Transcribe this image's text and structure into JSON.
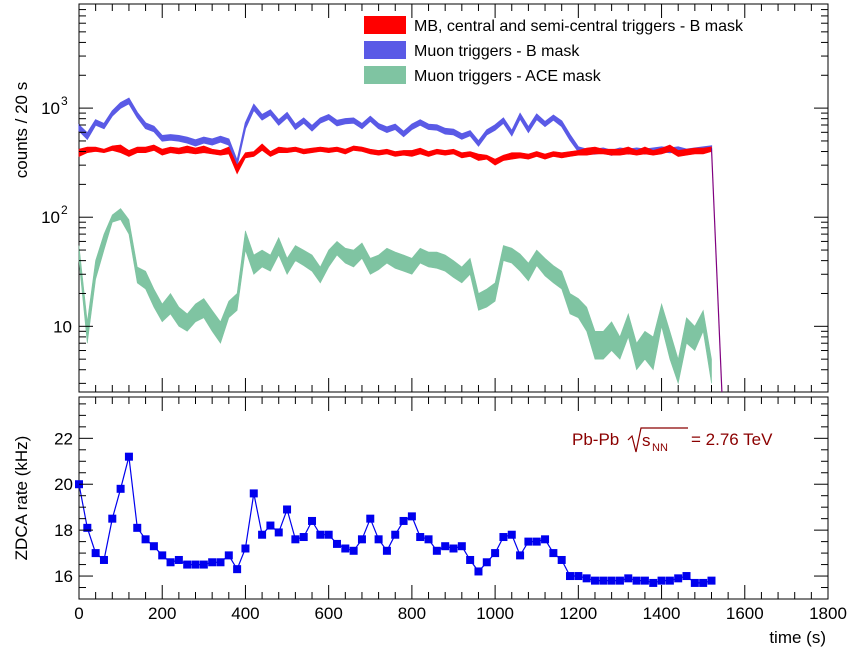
{
  "chart_data": [
    {
      "type": "area",
      "ylabel": "counts / 20 s",
      "yscale": "log",
      "ylim": [
        2.5,
        9000
      ],
      "xlim": [
        0,
        1800
      ],
      "ytick_labels": [
        "10",
        "10",
        "10"
      ],
      "ytick_exponents": [
        "",
        "2",
        "3"
      ],
      "legend_position": "top-right",
      "series": [
        {
          "name": "MB, central and semi-central triggers - B mask",
          "color": "#ff0000",
          "x": [
            0,
            20,
            40,
            60,
            80,
            100,
            120,
            140,
            160,
            180,
            200,
            220,
            240,
            260,
            280,
            300,
            320,
            340,
            360,
            380,
            400,
            420,
            440,
            460,
            480,
            500,
            520,
            540,
            560,
            580,
            600,
            620,
            640,
            660,
            680,
            700,
            720,
            740,
            760,
            780,
            800,
            820,
            840,
            860,
            880,
            900,
            920,
            940,
            960,
            980,
            1000,
            1020,
            1040,
            1060,
            1080,
            1100,
            1120,
            1140,
            1160,
            1180,
            1200,
            1220,
            1240,
            1260,
            1280,
            1300,
            1320,
            1340,
            1360,
            1380,
            1400,
            1420,
            1440,
            1460,
            1480,
            1500,
            1520
          ],
          "low": [
            360,
            390,
            400,
            390,
            410,
            390,
            360,
            390,
            390,
            410,
            370,
            390,
            380,
            390,
            380,
            390,
            380,
            370,
            380,
            250,
            350,
            360,
            410,
            360,
            390,
            390,
            400,
            380,
            390,
            400,
            390,
            400,
            380,
            410,
            400,
            380,
            370,
            380,
            360,
            370,
            360,
            380,
            360,
            380,
            370,
            380,
            350,
            360,
            330,
            340,
            300,
            330,
            340,
            350,
            340,
            360,
            340,
            360,
            350,
            360,
            370,
            370,
            380,
            380,
            370,
            370,
            380,
            370,
            380,
            370,
            380,
            400,
            360,
            370,
            380,
            380,
            400
          ],
          "high": [
            420,
            440,
            440,
            420,
            450,
            460,
            410,
            440,
            440,
            460,
            420,
            440,
            430,
            450,
            430,
            450,
            420,
            410,
            440,
            300,
            390,
            400,
            470,
            400,
            440,
            430,
            440,
            420,
            430,
            440,
            430,
            440,
            420,
            450,
            440,
            420,
            410,
            420,
            400,
            410,
            410,
            430,
            400,
            420,
            410,
            420,
            390,
            400,
            380,
            370,
            340,
            370,
            390,
            390,
            380,
            400,
            380,
            400,
            390,
            400,
            410,
            430,
            440,
            420,
            420,
            420,
            440,
            410,
            440,
            410,
            430,
            460,
            410,
            420,
            430,
            430,
            440
          ]
        },
        {
          "name": "Muon triggers - B mask",
          "color": "#5a5ae6",
          "x": [
            0,
            20,
            40,
            60,
            80,
            100,
            120,
            140,
            160,
            180,
            200,
            220,
            240,
            260,
            280,
            300,
            320,
            340,
            360,
            380,
            400,
            420,
            440,
            460,
            480,
            500,
            520,
            540,
            560,
            580,
            600,
            620,
            640,
            660,
            680,
            700,
            720,
            740,
            760,
            780,
            800,
            820,
            840,
            860,
            880,
            900,
            920,
            940,
            960,
            980,
            1000,
            1020,
            1040,
            1060,
            1080,
            1100,
            1120,
            1140,
            1160,
            1180,
            1200,
            1220,
            1240,
            1260,
            1280,
            1300,
            1320,
            1340,
            1360,
            1380,
            1400,
            1420,
            1440,
            1460,
            1480,
            1500,
            1520
          ],
          "low": [
            620,
            520,
            700,
            650,
            850,
            1000,
            1100,
            820,
            650,
            610,
            500,
            510,
            500,
            480,
            450,
            480,
            460,
            490,
            460,
            300,
            650,
            960,
            780,
            870,
            700,
            820,
            640,
            730,
            620,
            730,
            790,
            690,
            720,
            730,
            650,
            760,
            650,
            600,
            640,
            550,
            640,
            700,
            640,
            630,
            580,
            570,
            520,
            560,
            450,
            570,
            630,
            730,
            560,
            800,
            600,
            790,
            680,
            780,
            680,
            510,
            400,
            380,
            380,
            390,
            370,
            390,
            380,
            390,
            380,
            390,
            400,
            390,
            400,
            380,
            390,
            400,
            410
          ],
          "high": [
            700,
            590,
            780,
            720,
            940,
            1120,
            1230,
            910,
            730,
            680,
            560,
            570,
            560,
            540,
            510,
            540,
            520,
            550,
            520,
            330,
            730,
            1080,
            870,
            960,
            780,
            910,
            710,
            810,
            690,
            810,
            870,
            770,
            800,
            810,
            720,
            840,
            720,
            670,
            710,
            610,
            710,
            780,
            710,
            700,
            650,
            640,
            580,
            620,
            500,
            630,
            700,
            810,
            620,
            890,
            670,
            880,
            750,
            860,
            760,
            570,
            440,
            420,
            420,
            430,
            410,
            430,
            420,
            430,
            420,
            430,
            440,
            430,
            440,
            420,
            430,
            440,
            450
          ]
        },
        {
          "name": "Muon triggers - ACE mask",
          "color": "#7fc4a2",
          "x": [
            0,
            20,
            40,
            60,
            80,
            100,
            120,
            140,
            160,
            180,
            200,
            220,
            240,
            260,
            280,
            300,
            320,
            340,
            360,
            380,
            400,
            420,
            440,
            460,
            480,
            500,
            520,
            540,
            560,
            580,
            600,
            620,
            640,
            660,
            680,
            700,
            720,
            740,
            760,
            780,
            800,
            820,
            840,
            860,
            880,
            900,
            920,
            940,
            960,
            980,
            1000,
            1020,
            1040,
            1060,
            1080,
            1100,
            1120,
            1140,
            1160,
            1180,
            1200,
            1220,
            1240,
            1260,
            1280,
            1300,
            1320,
            1340,
            1360,
            1380,
            1400,
            1420,
            1440,
            1460,
            1480,
            1500,
            1520
          ],
          "low": [
            40,
            7,
            27,
            50,
            90,
            95,
            70,
            25,
            22,
            15,
            11,
            13,
            10,
            9,
            11,
            12,
            9,
            7,
            12,
            14,
            50,
            30,
            35,
            32,
            45,
            30,
            40,
            36,
            32,
            25,
            35,
            45,
            38,
            35,
            42,
            30,
            33,
            38,
            34,
            32,
            30,
            38,
            35,
            34,
            32,
            28,
            25,
            30,
            14,
            15,
            17,
            40,
            38,
            32,
            26,
            36,
            29,
            25,
            22,
            13,
            12,
            9,
            5,
            5,
            6,
            5,
            8,
            4,
            5,
            4,
            10,
            5,
            3,
            7,
            6,
            9,
            3
          ],
          "high": [
            55,
            11,
            40,
            70,
            105,
            120,
            95,
            35,
            32,
            22,
            16,
            20,
            15,
            13,
            16,
            18,
            14,
            11,
            17,
            20,
            75,
            45,
            50,
            45,
            65,
            42,
            55,
            50,
            45,
            35,
            50,
            60,
            52,
            50,
            58,
            42,
            45,
            52,
            48,
            45,
            42,
            52,
            48,
            48,
            45,
            40,
            35,
            42,
            20,
            22,
            25,
            55,
            52,
            46,
            38,
            50,
            42,
            36,
            32,
            20,
            18,
            15,
            9,
            9,
            11,
            8,
            13,
            7,
            9,
            8,
            16,
            9,
            5,
            12,
            10,
            14,
            5
          ]
        }
      ],
      "tail": {
        "x": [
          1520,
          1545
        ],
        "y": [
          430,
          2.5
        ],
        "color": "#800080"
      }
    },
    {
      "type": "line",
      "ylabel": "ZDCA rate (kHz)",
      "xlabel": "time (s)",
      "xlim": [
        0,
        1800
      ],
      "ylim": [
        15,
        23.8
      ],
      "x_ticks": [
        0,
        200,
        400,
        600,
        800,
        1000,
        1200,
        1400,
        1600,
        1800
      ],
      "y_ticks": [
        16,
        18,
        20,
        22
      ],
      "color": "#0000ee",
      "annotation_text": "Pb-Pb",
      "annotation_sqrt": "s",
      "annotation_sub": "NN",
      "annotation_value": "= 2.76 TeV",
      "annotation_color": "#8b0000",
      "x": [
        0,
        20,
        40,
        60,
        80,
        100,
        120,
        140,
        160,
        180,
        200,
        220,
        240,
        260,
        280,
        300,
        320,
        340,
        360,
        380,
        400,
        420,
        440,
        460,
        480,
        500,
        520,
        540,
        560,
        580,
        600,
        620,
        640,
        660,
        680,
        700,
        720,
        740,
        760,
        780,
        800,
        820,
        840,
        860,
        880,
        900,
        920,
        940,
        960,
        980,
        1000,
        1020,
        1040,
        1060,
        1080,
        1100,
        1120,
        1140,
        1160,
        1180,
        1200,
        1220,
        1240,
        1260,
        1280,
        1300,
        1320,
        1340,
        1360,
        1380,
        1400,
        1420,
        1440,
        1460,
        1480,
        1500,
        1520
      ],
      "y": [
        20.0,
        18.1,
        17.0,
        16.7,
        18.5,
        19.8,
        21.2,
        18.1,
        17.6,
        17.3,
        16.9,
        16.6,
        16.7,
        16.5,
        16.5,
        16.5,
        16.6,
        16.6,
        16.9,
        16.3,
        17.2,
        19.6,
        17.8,
        18.2,
        17.9,
        18.9,
        17.6,
        17.7,
        18.4,
        17.8,
        17.8,
        17.4,
        17.2,
        17.1,
        17.6,
        18.5,
        17.6,
        17.1,
        17.8,
        18.4,
        18.6,
        17.7,
        17.6,
        17.1,
        17.3,
        17.2,
        17.3,
        16.7,
        16.2,
        16.6,
        17.0,
        17.7,
        17.8,
        16.9,
        17.5,
        17.5,
        17.6,
        17.0,
        16.7,
        16.0,
        16.0,
        15.9,
        15.8,
        15.8,
        15.8,
        15.8,
        15.9,
        15.8,
        15.8,
        15.7,
        15.8,
        15.8,
        15.9,
        16.0,
        15.7,
        15.7,
        15.8
      ]
    }
  ]
}
